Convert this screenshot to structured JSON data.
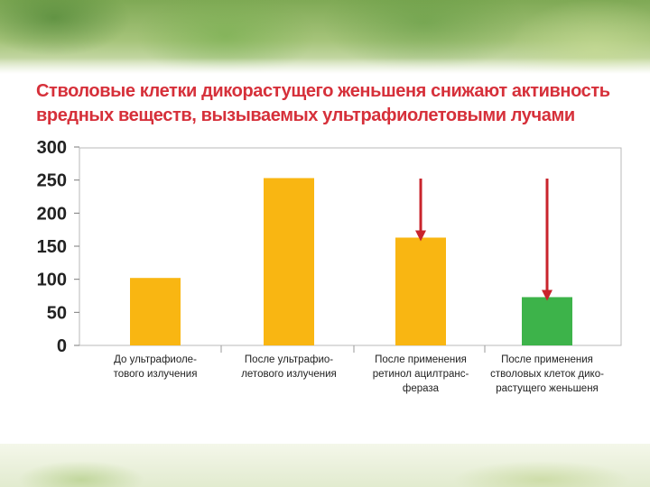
{
  "slide": {
    "title_line1": "Стволовые клетки дикорастущего женьшеня снижают активность",
    "title_line2": "вредных веществ, вызываемых ультрафиолетовыми лучами",
    "title_color": "#d6303a"
  },
  "chart_data": {
    "type": "bar",
    "categories": [
      [
        "До ультрафиоле-",
        "тового излучения"
      ],
      [
        "После ультрафио-",
        "летового излучения"
      ],
      [
        "После применения",
        "ретинол ацилтранс-",
        "фераза"
      ],
      [
        "После применения",
        "стволовых клеток дико-",
        "растущего женьшеня"
      ]
    ],
    "values": [
      102,
      253,
      163,
      73
    ],
    "bar_colors": [
      "#f9b612",
      "#f9b612",
      "#f9b612",
      "#3db34a"
    ],
    "arrows_on_bars": [
      2,
      3
    ],
    "arrow_color": "#c9242c",
    "ylim": [
      0,
      300
    ],
    "yticks": [
      0,
      50,
      100,
      150,
      200,
      250,
      300
    ],
    "ytick_labels": [
      "0",
      "50",
      "100",
      "150",
      "200",
      "250",
      "300"
    ],
    "xlabel": "",
    "ylabel": "",
    "grid": false
  }
}
